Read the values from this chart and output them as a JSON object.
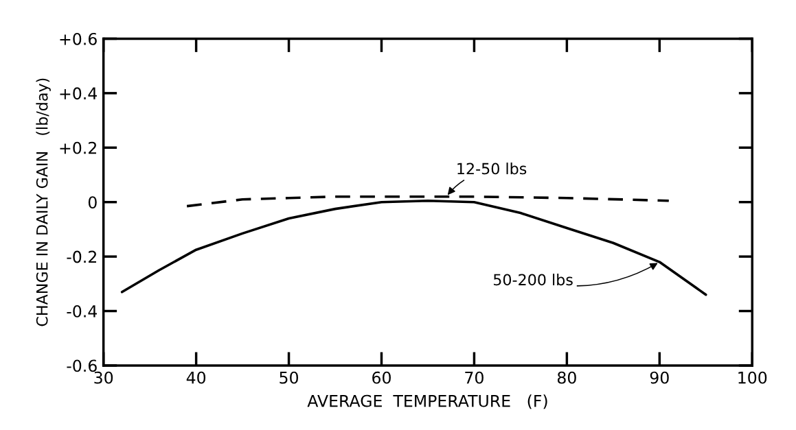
{
  "chart_data": {
    "type": "line",
    "xlabel": "AVERAGE  TEMPERATURE   (F)",
    "ylabel": "CHANGE IN DAILY GAIN   (lb/day)",
    "xlim": [
      30,
      100
    ],
    "xticks": [
      30,
      40,
      50,
      60,
      70,
      80,
      90,
      100
    ],
    "ylim": [
      -0.6,
      0.6
    ],
    "yticks": [
      {
        "value": 0.6,
        "label": "+0.6"
      },
      {
        "value": 0.4,
        "label": "+0.4"
      },
      {
        "value": 0.2,
        "label": "+0.2"
      },
      0,
      {
        "value": -0.2,
        "label": "-0.2"
      },
      {
        "value": -0.4,
        "label": "-0.4"
      },
      {
        "value": -0.6,
        "label": "-0.6"
      }
    ],
    "grid": false,
    "legend": false,
    "marker": "none",
    "series": [
      {
        "color": "#000000",
        "line_style": "solid",
        "x": [
          32,
          36,
          40,
          45,
          50,
          55,
          60,
          65,
          70,
          75,
          80,
          85,
          90,
          95
        ],
        "values": [
          -0.33,
          -0.25,
          -0.175,
          -0.115,
          -0.06,
          -0.025,
          0,
          0.005,
          0,
          -0.04,
          -0.095,
          -0.15,
          -0.22,
          -0.34
        ]
      },
      {
        "color": "#000000",
        "line_style": "dashed",
        "x": [
          39,
          45,
          50,
          55,
          60,
          70,
          80,
          91
        ],
        "values": [
          -0.015,
          0.01,
          0.015,
          0.02,
          0.02,
          0.02,
          0.015,
          0.005
        ]
      }
    ],
    "annotations": [
      {
        "text": "12-50 lbs",
        "x": 67,
        "y": 0.02
      },
      {
        "text": "50-200 lbs",
        "x": 90,
        "y": -0.22
      }
    ]
  }
}
